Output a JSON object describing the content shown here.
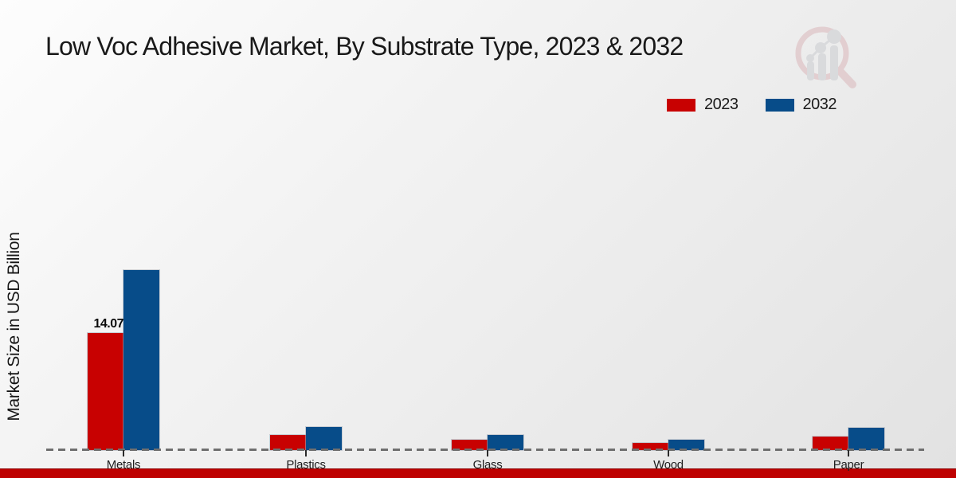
{
  "chart_data": {
    "type": "bar",
    "title": "Low Voc Adhesive Market, By Substrate Type, 2023 & 2032",
    "ylabel": "Market Size in USD Billion",
    "xlabel": "",
    "categories": [
      "Metals",
      "Plastics",
      "Glass",
      "Wood",
      "Paper"
    ],
    "series": [
      {
        "name": "2023",
        "color": "#C80101",
        "values": [
          14.07,
          1.85,
          1.2,
          0.85,
          1.65
        ]
      },
      {
        "name": "2032",
        "color": "#074C89",
        "values": [
          21.6,
          2.78,
          1.8,
          1.2,
          2.65
        ]
      }
    ],
    "annotations": [
      {
        "series": "2023",
        "category": "Metals",
        "text": "14.07"
      }
    ],
    "legend_position": "top-right",
    "grid": false,
    "y_ticks_shown": false,
    "baseline_style": "dashed-gray",
    "ylim": [
      0,
      24
    ]
  },
  "page": {
    "footer_strip_color": "#BE0101",
    "background_style": "light-gray-gradient",
    "watermark_icon": "magnifier-bar-chart-logo",
    "dashed_line_color": "#6F6F6F"
  }
}
